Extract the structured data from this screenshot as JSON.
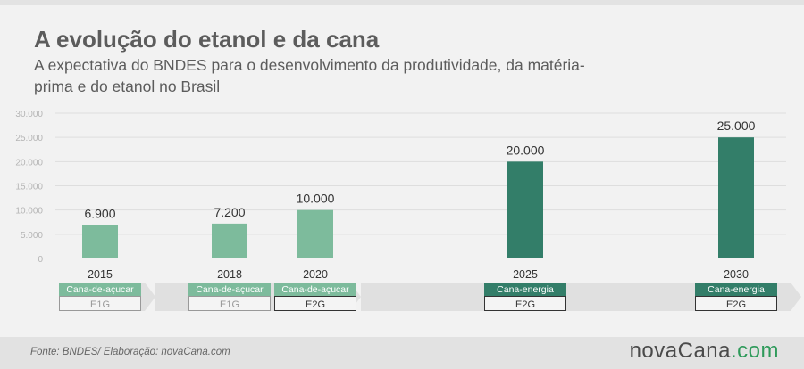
{
  "header": {
    "title": "A evolução do etanol e da cana",
    "subtitle": "A expectativa do BNDES para o desenvolvimento da produtividade, da matéria-prima e do etanol no Brasil"
  },
  "chart_data": {
    "type": "bar",
    "categories": [
      "2015",
      "2018",
      "2020",
      "2025",
      "2030"
    ],
    "values": [
      6900,
      7200,
      10000,
      20000,
      25000
    ],
    "value_labels": [
      "6.900",
      "7.200",
      "10.000",
      "20.000",
      "25.000"
    ],
    "ylim": [
      0,
      30000
    ],
    "yticks": [
      0,
      5000,
      10000,
      15000,
      20000,
      25000,
      30000
    ],
    "ytick_labels": [
      "0",
      "5.000",
      "10.000",
      "15.000",
      "20.000",
      "25.000",
      "30.000"
    ],
    "grid": true,
    "xlabel": "",
    "ylabel": "",
    "materials": [
      "Cana-de-açucar",
      "Cana-de-açucar",
      "Cana-de-açucar",
      "Cana-energia",
      "Cana-energia"
    ],
    "generations": [
      "E1G",
      "E1G",
      "E2G",
      "E2G",
      "E2G"
    ],
    "colors": {
      "light_bar": "#7dbb9c",
      "dark_bar": "#337e69",
      "gen_active": "#333333",
      "gen_inactive": "#999999"
    }
  },
  "footer": {
    "source": "Fonte: BNDES/ Elaboração: novaCana.com",
    "logo_brand": "novaCana",
    "logo_dot": ".",
    "logo_tld": "com"
  }
}
